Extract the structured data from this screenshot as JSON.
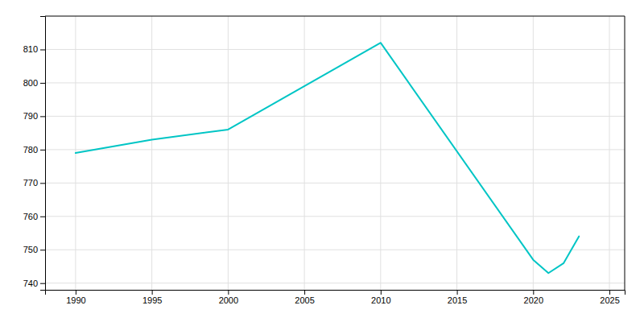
{
  "chart_data": {
    "type": "line",
    "x": [
      1990,
      1995,
      2000,
      2010,
      2020,
      2021,
      2022,
      2023
    ],
    "values": [
      779,
      783,
      786,
      812,
      747,
      743,
      746,
      754
    ],
    "color": "#00C5C5",
    "xlim": [
      1988,
      2026
    ],
    "ylim": [
      738,
      820
    ],
    "xticks": [
      1990,
      1995,
      2000,
      2005,
      2010,
      2015,
      2020,
      2025
    ],
    "yticks": [
      740,
      750,
      760,
      770,
      780,
      790,
      800,
      810
    ],
    "grid": true
  }
}
